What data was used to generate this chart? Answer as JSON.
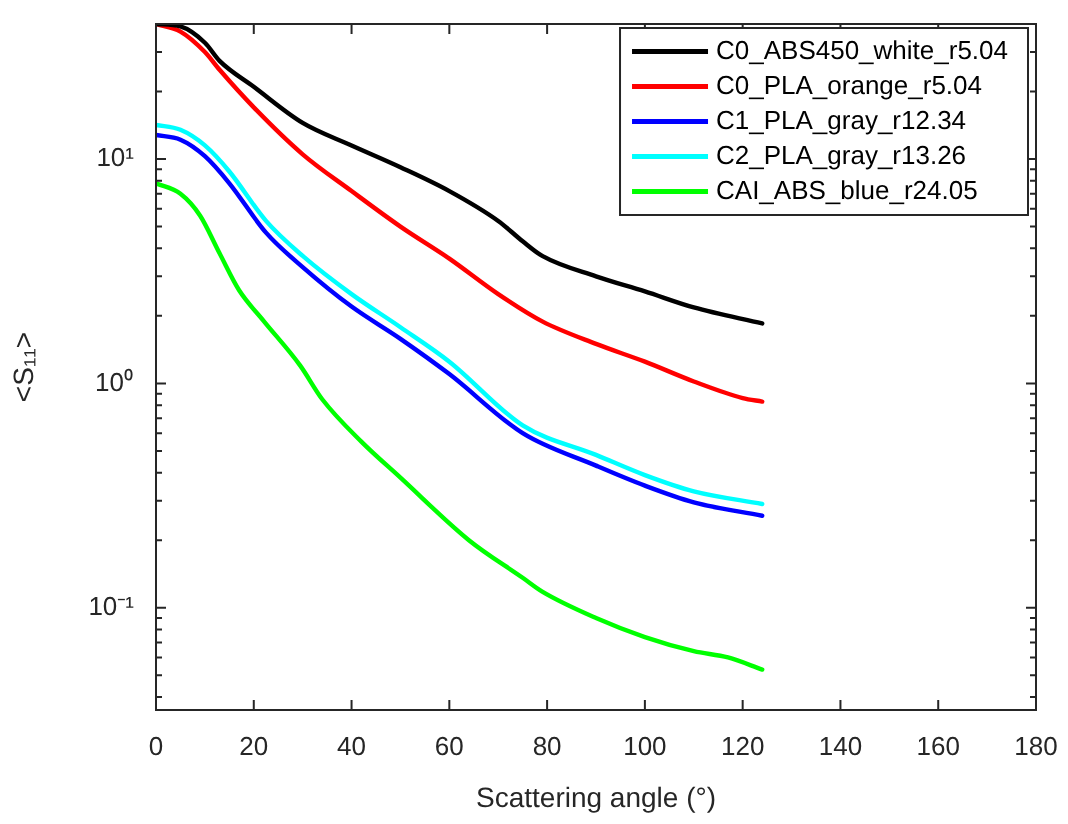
{
  "chart_data": {
    "type": "line",
    "xlabel": "Scattering angle (°)",
    "ylabel": "<S₁₁>",
    "log": "y",
    "grid": false,
    "legend": "top right",
    "line_style": "solid",
    "marker": "none",
    "xlim": [
      0,
      180
    ],
    "xticks": [
      0,
      20,
      40,
      60,
      80,
      100,
      120,
      140,
      160,
      180
    ],
    "ylim": [
      0.035,
      40
    ],
    "yticks": [
      {
        "value": 0.04,
        "label": null
      },
      {
        "value": 0.05,
        "label": null
      },
      {
        "value": 0.06,
        "label": null
      },
      {
        "value": 0.07,
        "label": null
      },
      {
        "value": 0.08,
        "label": null
      },
      {
        "value": 0.09,
        "label": null
      },
      {
        "value": 0.1,
        "label": "10⁻¹"
      },
      {
        "value": 0.2,
        "label": null
      },
      {
        "value": 0.3,
        "label": null
      },
      {
        "value": 0.4,
        "label": null
      },
      {
        "value": 0.5,
        "label": null
      },
      {
        "value": 0.6,
        "label": null
      },
      {
        "value": 0.7,
        "label": null
      },
      {
        "value": 0.8,
        "label": null
      },
      {
        "value": 0.9,
        "label": null
      },
      {
        "value": 1,
        "label": "10⁰"
      },
      {
        "value": 2,
        "label": null
      },
      {
        "value": 3,
        "label": null
      },
      {
        "value": 4,
        "label": null
      },
      {
        "value": 5,
        "label": null
      },
      {
        "value": 6,
        "label": null
      },
      {
        "value": 7,
        "label": null
      },
      {
        "value": 8,
        "label": null
      },
      {
        "value": 9,
        "label": null
      },
      {
        "value": 10,
        "label": "10¹"
      },
      {
        "value": 20,
        "label": null
      },
      {
        "value": 30,
        "label": null
      },
      {
        "value": 40,
        "label": null
      }
    ],
    "series": [
      {
        "name": "C0_ABS450_white_r5.04",
        "color": "#000000",
        "x": [
          0,
          5,
          10,
          13,
          20,
          30,
          40,
          50,
          60,
          70,
          75,
          79,
          90,
          100,
          110,
          124
        ],
        "values": [
          40,
          39,
          33,
          27.4,
          21,
          14.5,
          11.5,
          9.2,
          7.2,
          5.3,
          4.3,
          3.7,
          3.0,
          2.57,
          2.18,
          1.85
        ]
      },
      {
        "name": "C0_PLA_orange_r5.04",
        "color": "#ff0000",
        "x": [
          0,
          5,
          10,
          13,
          20,
          30,
          40,
          50,
          60,
          70,
          79,
          90,
          100,
          110,
          120,
          124
        ],
        "values": [
          40,
          37,
          30,
          25,
          17,
          10.5,
          7.2,
          5.0,
          3.6,
          2.5,
          1.89,
          1.5,
          1.25,
          1.02,
          0.86,
          0.83
        ]
      },
      {
        "name": "C1_PLA_gray_r12.34",
        "color": "#0000ff",
        "x": [
          0,
          5,
          10,
          15,
          22.5,
          30,
          40,
          50,
          60,
          75,
          90,
          100,
          110,
          124
        ],
        "values": [
          12.8,
          12.2,
          10.3,
          7.8,
          4.7,
          3.3,
          2.2,
          1.58,
          1.1,
          0.6,
          0.43,
          0.35,
          0.295,
          0.257
        ]
      },
      {
        "name": "C2_PLA_gray_r13.26",
        "color": "#00ffff",
        "x": [
          0,
          5,
          10,
          15,
          22.5,
          30,
          40,
          50,
          60,
          75,
          90,
          100,
          110,
          124
        ],
        "values": [
          14.2,
          13.5,
          11.5,
          8.8,
          5.3,
          3.7,
          2.5,
          1.78,
          1.25,
          0.65,
          0.48,
          0.39,
          0.33,
          0.29
        ]
      },
      {
        "name": "CAI_ABS_blue_r24.05",
        "color": "#00ff00",
        "x": [
          0,
          5,
          9,
          13,
          17,
          22,
          29.5,
          34,
          42,
          50,
          64,
          75,
          79,
          90,
          100,
          110,
          117,
          124
        ],
        "values": [
          7.8,
          7,
          5.6,
          3.8,
          2.6,
          1.9,
          1.2,
          0.85,
          0.55,
          0.38,
          0.2,
          0.136,
          0.118,
          0.09,
          0.074,
          0.064,
          0.06,
          0.053
        ]
      }
    ]
  }
}
